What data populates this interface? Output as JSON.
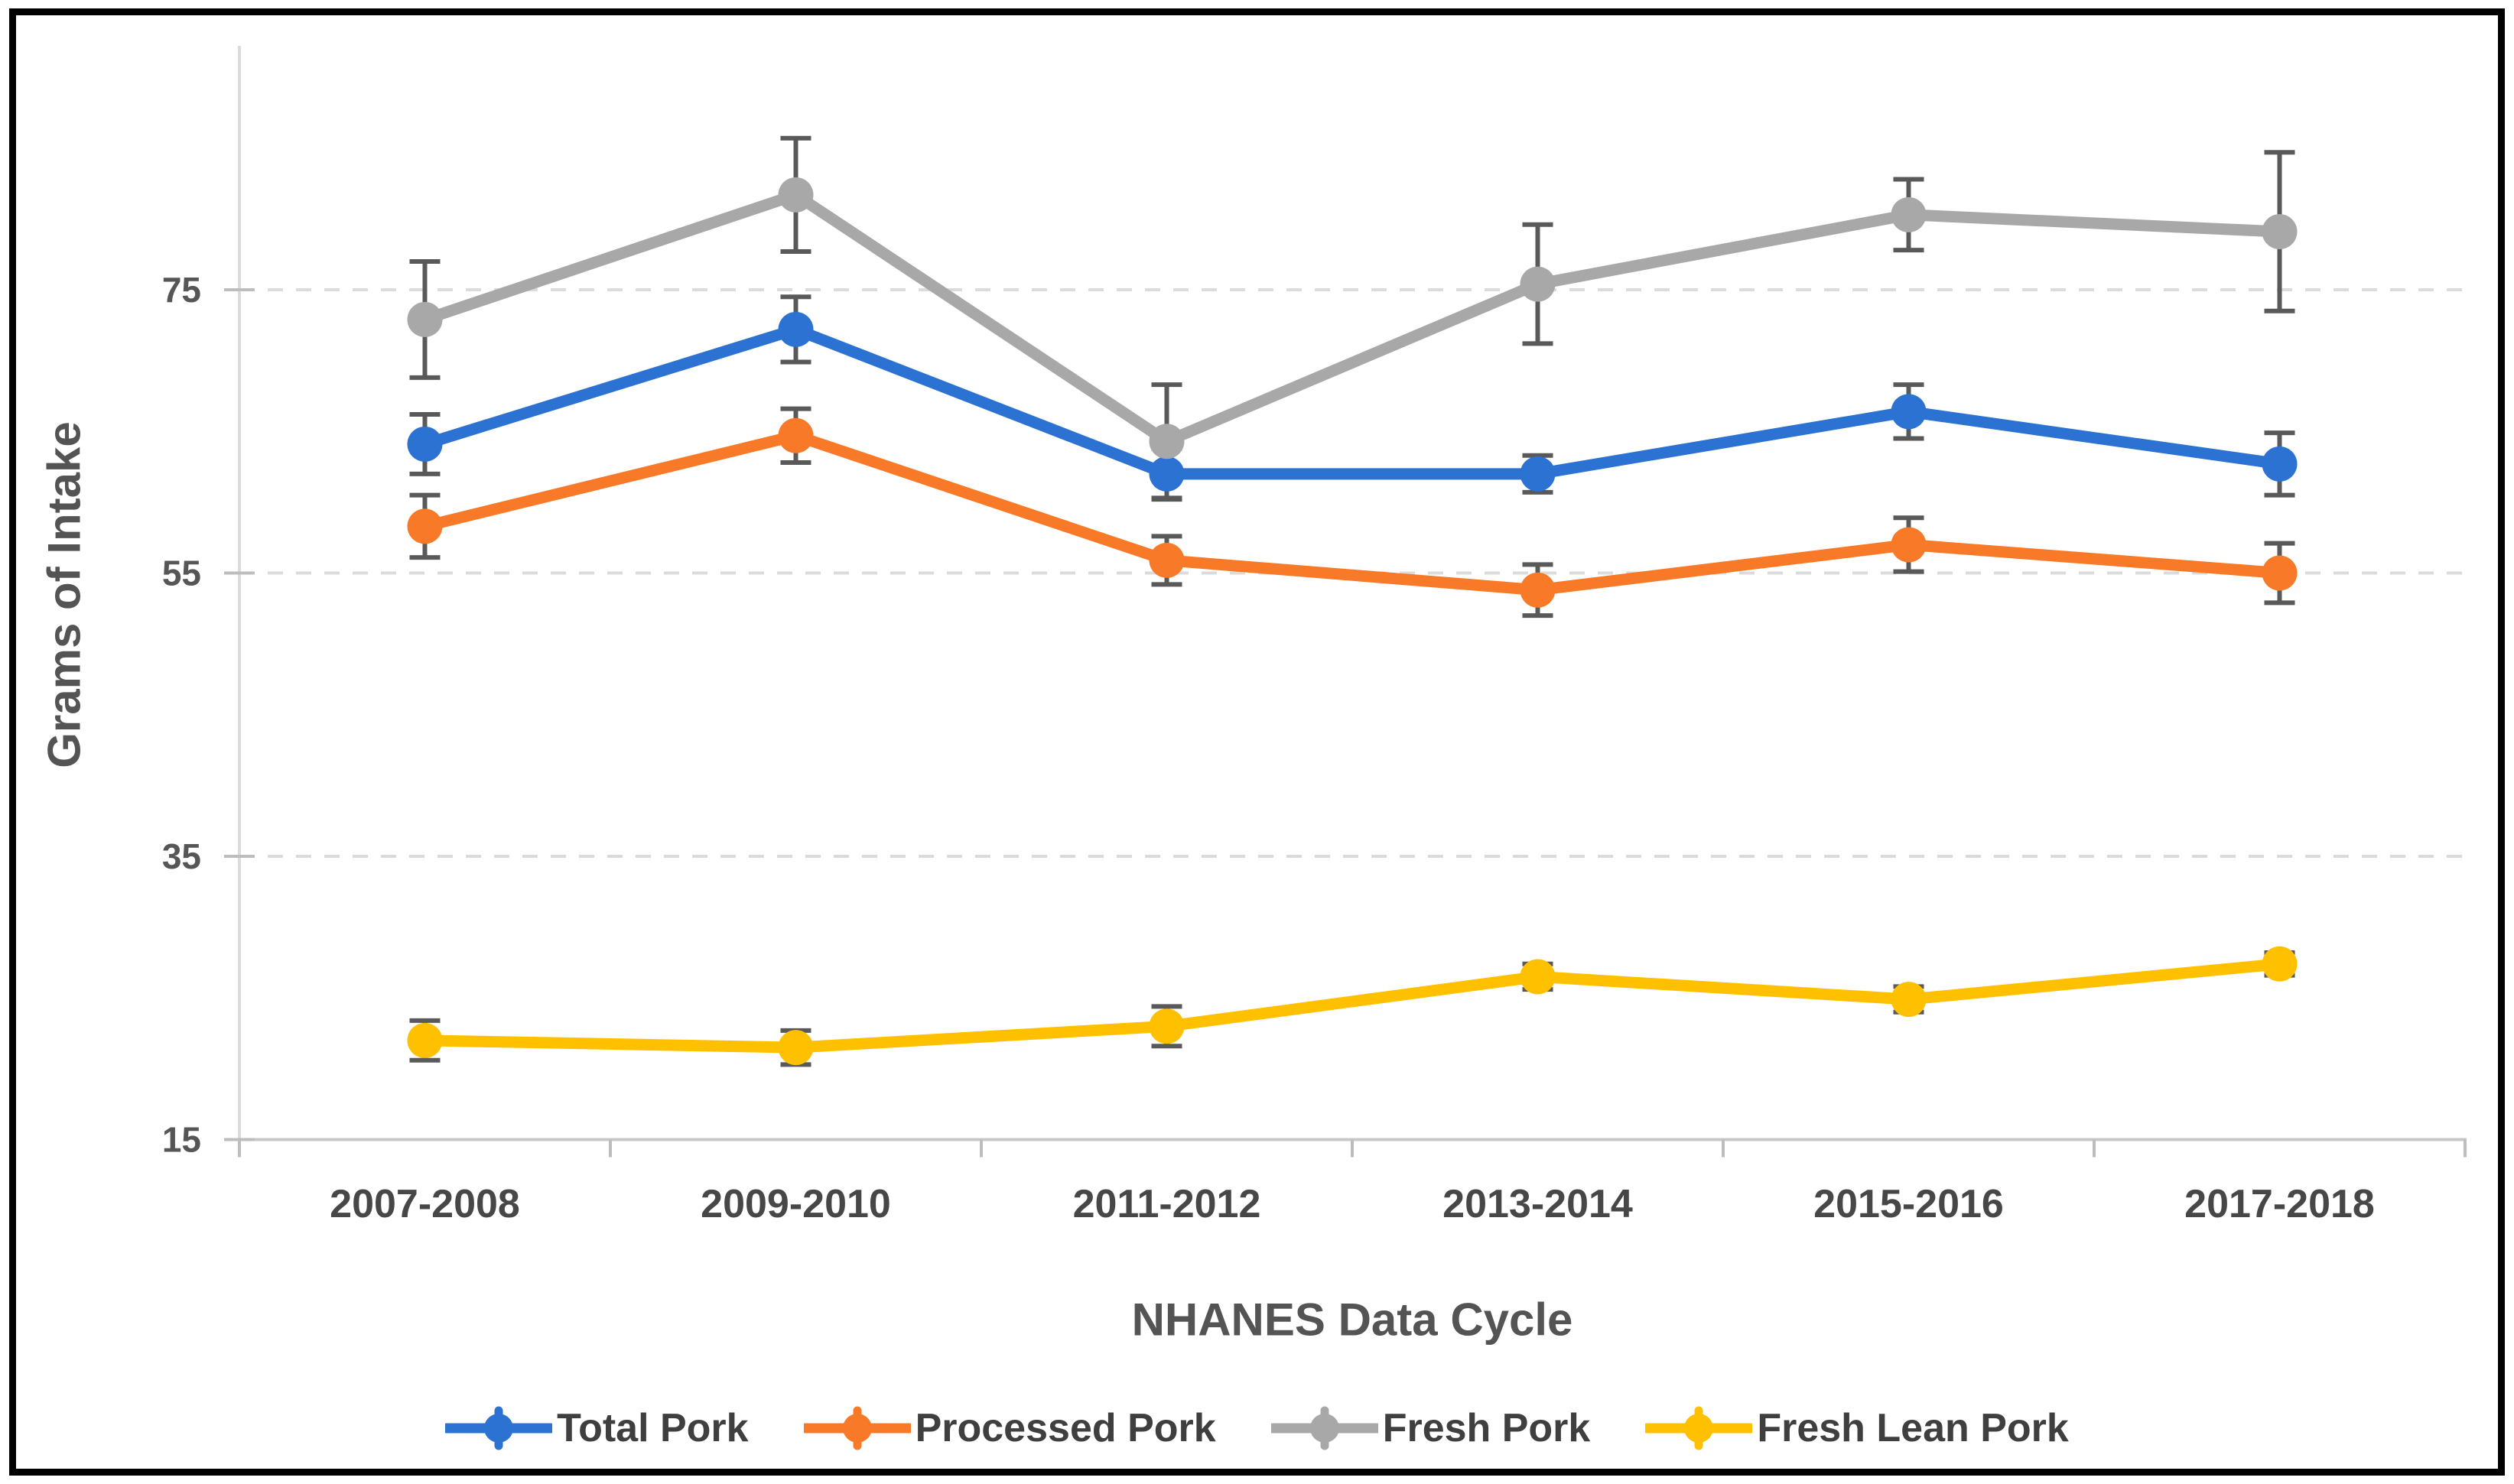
{
  "figure": {
    "background_color": "#ffffff",
    "border_color": "#000000",
    "gridline_color": "#dbdbdb",
    "axis_line_color": "#c8c8c8",
    "tick_color": "#bdbdbd",
    "tick_label_color": "#565656",
    "axis_title_color": "#545454",
    "error_bar_color": "#595959"
  },
  "chart_data": {
    "type": "line",
    "title": "",
    "xlabel": "NHANES Data Cycle",
    "ylabel": "Grams of Intake",
    "categories": [
      "2007-2008",
      "2009-2010",
      "2011-2012",
      "2013-2014",
      "2015-2016",
      "2017-2018"
    ],
    "yticks": [
      15,
      35,
      55,
      75
    ],
    "ylim": [
      15,
      92
    ],
    "grid": "horizontal-dashed",
    "legend_position": "bottom",
    "error_bars": true,
    "series": [
      {
        "name": "Total Pork",
        "color": "#2C72D2",
        "values": [
          64.1,
          72.2,
          62.0,
          62.0,
          66.4,
          62.7
        ],
        "errors": [
          2.1,
          2.3,
          1.8,
          1.3,
          1.9,
          2.2
        ]
      },
      {
        "name": "Processed Pork",
        "color": "#F87A28",
        "values": [
          58.3,
          64.7,
          55.9,
          53.8,
          57.0,
          55.0
        ],
        "errors": [
          2.2,
          1.9,
          1.7,
          1.8,
          1.9,
          2.1
        ]
      },
      {
        "name": "Fresh Pork",
        "color": "#A8A8A8",
        "values": [
          72.9,
          81.7,
          64.3,
          75.4,
          80.3,
          79.1
        ],
        "errors": [
          4.1,
          4.0,
          4.0,
          4.2,
          2.5,
          5.6
        ]
      },
      {
        "name": "Fresh Lean Pork",
        "color": "#FFC000",
        "values": [
          22.0,
          21.5,
          23.0,
          26.5,
          24.9,
          27.4
        ],
        "errors": [
          1.4,
          1.2,
          1.4,
          0.9,
          0.9,
          0.8
        ]
      }
    ]
  }
}
